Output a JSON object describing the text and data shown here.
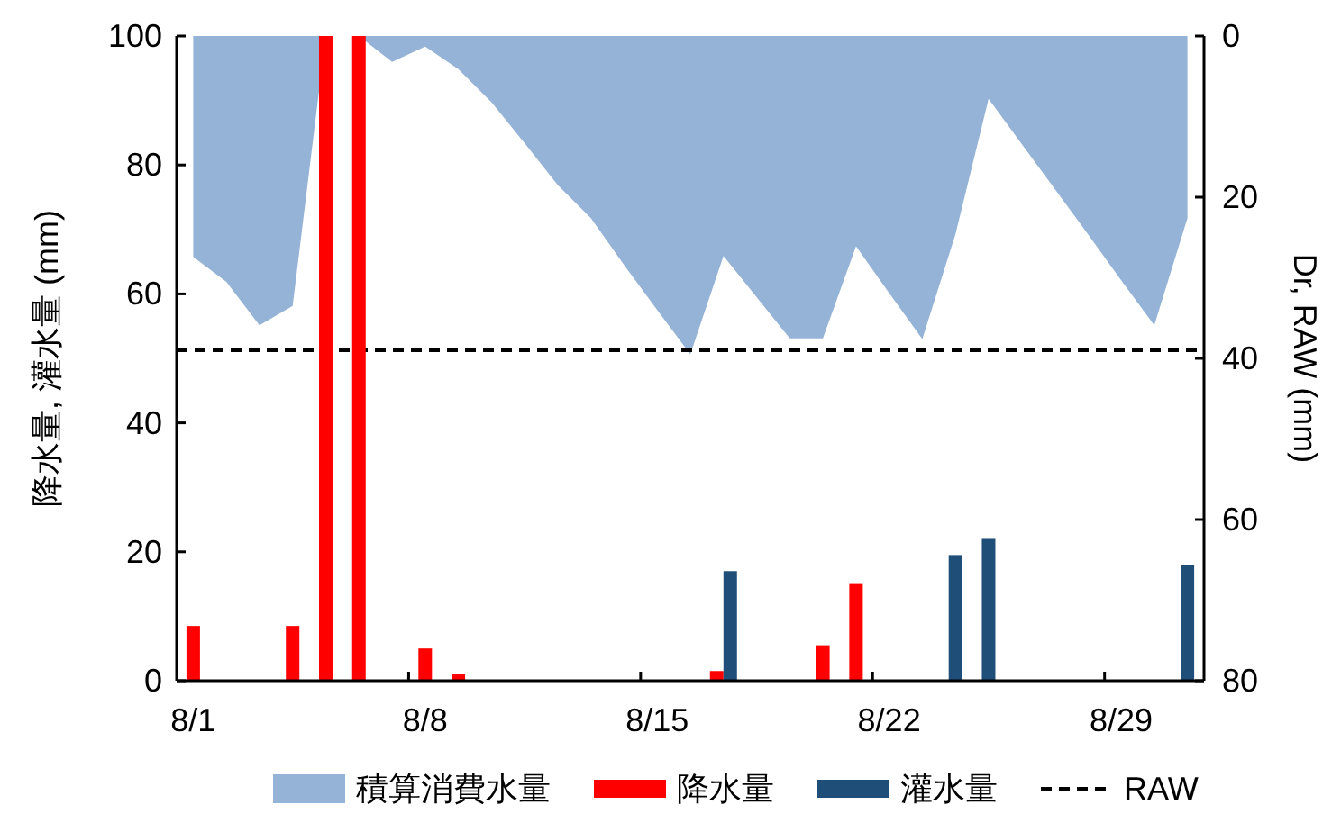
{
  "chart_data": {
    "type": "bar",
    "categories": [
      "8/1",
      null,
      null,
      null,
      null,
      null,
      null,
      "8/8",
      null,
      null,
      null,
      null,
      null,
      null,
      "8/15",
      null,
      null,
      null,
      null,
      null,
      null,
      "8/22",
      null,
      null,
      null,
      null,
      null,
      null,
      "8/29",
      null,
      null
    ],
    "ylabel": "降水量, 灌水量 (mm)",
    "y2label": "Dr, RAW (mm)",
    "ylim": [
      0,
      100
    ],
    "yticks": [
      0,
      20,
      40,
      60,
      80,
      100
    ],
    "y2lim": [
      80,
      0
    ],
    "y2ticks": [
      0,
      20,
      40,
      60,
      80
    ],
    "legend": "bottom",
    "series": [
      {
        "name": "積算消費水量",
        "type": "area",
        "axis": "y2",
        "color": "#95b3d7",
        "values": [
          27.4,
          30.5,
          35.9,
          33.5,
          0,
          0,
          3.2,
          1.3,
          4.1,
          8.2,
          13.3,
          18.5,
          22.6,
          28.4,
          34,
          39.5,
          27.3,
          32.4,
          37.5,
          37.5,
          26.1,
          31.9,
          37.6,
          24.6,
          7.8,
          13.4,
          19,
          24.6,
          30.3,
          35.9,
          22.6
        ]
      },
      {
        "name": "降水量",
        "color": "#ff0000",
        "values": [
          8.5,
          null,
          null,
          8.5,
          100,
          100,
          null,
          5,
          1,
          null,
          null,
          null,
          null,
          null,
          null,
          null,
          1.5,
          null,
          null,
          5.5,
          15,
          null,
          null,
          null,
          null,
          null,
          null,
          null,
          null,
          null,
          null
        ]
      },
      {
        "name": "灌水量",
        "color": "#1f4e79",
        "values": [
          null,
          null,
          null,
          null,
          null,
          null,
          null,
          null,
          null,
          null,
          null,
          null,
          null,
          null,
          null,
          null,
          17,
          null,
          null,
          null,
          null,
          null,
          null,
          19.5,
          22,
          null,
          null,
          null,
          null,
          null,
          18
        ]
      }
    ],
    "ref_lines": [
      {
        "axis": "y2",
        "value": 39,
        "label": "RAW",
        "color": "#000000",
        "line_style": "dashed"
      }
    ]
  }
}
